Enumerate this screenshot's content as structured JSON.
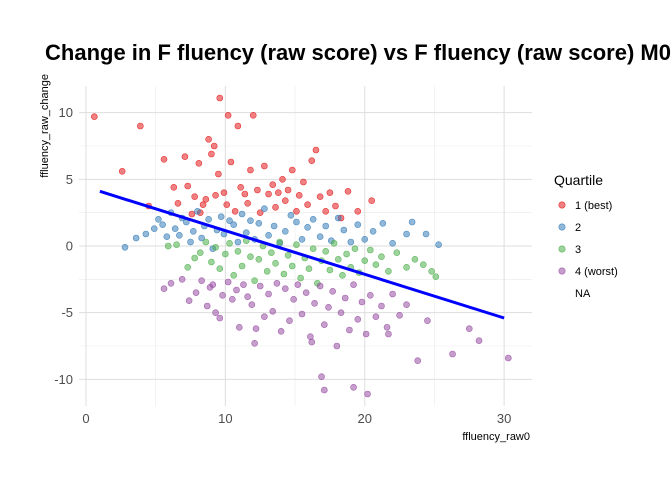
{
  "chart_data": {
    "type": "scatter",
    "title": "Change in F fluency (raw score) vs F fluency (raw score) M0",
    "xlabel": "ffluency_raw0",
    "ylabel": "ffluency_raw_change",
    "xlim": [
      -0.5,
      32
    ],
    "ylim": [
      -12,
      12
    ],
    "x_ticks": [
      0,
      10,
      20,
      30
    ],
    "y_ticks": [
      -10,
      -5,
      0,
      5,
      10
    ],
    "grid": true,
    "legend": {
      "title": "Quartile",
      "placement": "right",
      "entries": [
        {
          "label": "1 (best)",
          "color": "#e41a1c"
        },
        {
          "label": "2",
          "color": "#377eb8"
        },
        {
          "label": "3",
          "color": "#4daf4a"
        },
        {
          "label": "4 (worst)",
          "color": "#984ea3"
        },
        {
          "label": "NA",
          "color": ""
        }
      ]
    },
    "trend_line": {
      "x": [
        1,
        30
      ],
      "y": [
        4.1,
        -5.4
      ],
      "color": "#0000ff"
    },
    "series": [
      {
        "name": "1 (best)",
        "color": "#e41a1c",
        "points": [
          [
            0.6,
            9.7
          ],
          [
            2.6,
            5.6
          ],
          [
            3.9,
            9.0
          ],
          [
            4.5,
            3.0
          ],
          [
            5.6,
            6.5
          ],
          [
            6.3,
            4.4
          ],
          [
            6.6,
            3.2
          ],
          [
            7.1,
            6.7
          ],
          [
            7.3,
            4.5
          ],
          [
            7.6,
            2.4
          ],
          [
            7.8,
            3.7
          ],
          [
            8.1,
            6.2
          ],
          [
            8.2,
            2.5
          ],
          [
            8.4,
            3.1
          ],
          [
            8.6,
            3.5
          ],
          [
            8.8,
            8.0
          ],
          [
            9.0,
            6.9
          ],
          [
            9.2,
            7.5
          ],
          [
            9.3,
            3.8
          ],
          [
            9.5,
            5.4
          ],
          [
            9.6,
            11.1
          ],
          [
            9.9,
            4.0
          ],
          [
            10.1,
            3.1
          ],
          [
            10.2,
            9.8
          ],
          [
            10.4,
            6.3
          ],
          [
            10.7,
            2.6
          ],
          [
            10.9,
            9.0
          ],
          [
            11.1,
            4.4
          ],
          [
            11.4,
            3.9
          ],
          [
            11.6,
            3.2
          ],
          [
            11.8,
            5.7
          ],
          [
            12.0,
            9.8
          ],
          [
            12.3,
            4.2
          ],
          [
            12.5,
            2.5
          ],
          [
            12.8,
            6.0
          ],
          [
            13.1,
            3.9
          ],
          [
            13.4,
            4.6
          ],
          [
            13.6,
            2.9
          ],
          [
            13.8,
            4.0
          ],
          [
            14.1,
            5.0
          ],
          [
            14.3,
            3.4
          ],
          [
            14.5,
            4.2
          ],
          [
            14.8,
            5.7
          ],
          [
            15.1,
            2.6
          ],
          [
            15.3,
            3.8
          ],
          [
            15.6,
            4.8
          ],
          [
            15.9,
            3.1
          ],
          [
            16.2,
            6.4
          ],
          [
            16.5,
            7.2
          ],
          [
            16.8,
            3.7
          ],
          [
            17.2,
            2.6
          ],
          [
            17.5,
            4.0
          ],
          [
            17.9,
            3.0
          ],
          [
            18.3,
            2.1
          ],
          [
            18.8,
            4.1
          ],
          [
            19.5,
            2.6
          ],
          [
            20.5,
            3.4
          ]
        ]
      },
      {
        "name": "2",
        "color": "#377eb8",
        "points": [
          [
            2.8,
            -0.1
          ],
          [
            3.6,
            0.6
          ],
          [
            4.3,
            0.9
          ],
          [
            4.9,
            1.3
          ],
          [
            5.2,
            2.0
          ],
          [
            5.5,
            1.6
          ],
          [
            5.8,
            0.7
          ],
          [
            6.1,
            2.5
          ],
          [
            6.4,
            1.3
          ],
          [
            6.7,
            0.8
          ],
          [
            6.9,
            2.1
          ],
          [
            7.2,
            1.8
          ],
          [
            7.5,
            0.3
          ],
          [
            7.7,
            1.1
          ],
          [
            8.0,
            2.6
          ],
          [
            8.3,
            0.6
          ],
          [
            8.5,
            1.5
          ],
          [
            8.8,
            2.0
          ],
          [
            9.1,
            -0.2
          ],
          [
            9.4,
            1.2
          ],
          [
            9.7,
            2.2
          ],
          [
            9.9,
            0.9
          ],
          [
            10.3,
            1.9
          ],
          [
            10.6,
            1.6
          ],
          [
            10.9,
            0.3
          ],
          [
            11.2,
            2.4
          ],
          [
            11.5,
            1.0
          ],
          [
            11.8,
            1.9
          ],
          [
            12.1,
            0.5
          ],
          [
            12.4,
            1.7
          ],
          [
            12.8,
            2.8
          ],
          [
            13.1,
            0.8
          ],
          [
            13.5,
            1.5
          ],
          [
            13.9,
            0.2
          ],
          [
            14.3,
            1.1
          ],
          [
            14.7,
            2.3
          ],
          [
            15.1,
            1.8
          ],
          [
            15.5,
            0.5
          ],
          [
            15.9,
            1.4
          ],
          [
            16.3,
            2.0
          ],
          [
            16.8,
            0.7
          ],
          [
            17.2,
            1.5
          ],
          [
            17.6,
            0.4
          ],
          [
            18.1,
            2.1
          ],
          [
            18.5,
            1.2
          ],
          [
            19.0,
            0.3
          ],
          [
            19.5,
            1.6
          ],
          [
            20.0,
            0.5
          ],
          [
            20.6,
            1.1
          ],
          [
            21.3,
            1.7
          ],
          [
            22.0,
            0.2
          ],
          [
            23.0,
            0.9
          ],
          [
            23.4,
            1.8
          ],
          [
            24.4,
            0.9
          ],
          [
            25.3,
            0.1
          ]
        ]
      },
      {
        "name": "3",
        "color": "#4daf4a",
        "points": [
          [
            5.9,
            0.0
          ],
          [
            6.5,
            0.1
          ],
          [
            7.3,
            -1.6
          ],
          [
            7.8,
            -0.9
          ],
          [
            8.2,
            -0.5
          ],
          [
            8.6,
            0.3
          ],
          [
            9.0,
            -1.2
          ],
          [
            9.3,
            -0.1
          ],
          [
            9.6,
            -1.7
          ],
          [
            10.0,
            -0.6
          ],
          [
            10.3,
            0.2
          ],
          [
            10.6,
            -2.2
          ],
          [
            10.9,
            -0.4
          ],
          [
            11.2,
            -1.5
          ],
          [
            11.5,
            0.4
          ],
          [
            11.8,
            -0.8
          ],
          [
            12.1,
            -2.6
          ],
          [
            12.4,
            -1.0
          ],
          [
            12.7,
            0.0
          ],
          [
            13.0,
            -1.9
          ],
          [
            13.3,
            -0.5
          ],
          [
            13.6,
            -1.3
          ],
          [
            13.9,
            0.3
          ],
          [
            14.2,
            -2.1
          ],
          [
            14.5,
            -0.7
          ],
          [
            14.8,
            -1.5
          ],
          [
            15.1,
            0.1
          ],
          [
            15.4,
            -2.4
          ],
          [
            15.7,
            -0.9
          ],
          [
            16.0,
            -1.7
          ],
          [
            16.3,
            -0.2
          ],
          [
            16.6,
            -2.8
          ],
          [
            16.9,
            -1.1
          ],
          [
            17.2,
            -0.4
          ],
          [
            17.5,
            -1.8
          ],
          [
            17.8,
            0.2
          ],
          [
            18.1,
            -1.0
          ],
          [
            18.4,
            -2.2
          ],
          [
            18.7,
            -0.6
          ],
          [
            19.0,
            -1.6
          ],
          [
            19.3,
            -0.2
          ],
          [
            19.6,
            -2.0
          ],
          [
            20.0,
            -1.1
          ],
          [
            20.4,
            -0.3
          ],
          [
            20.8,
            -1.4
          ],
          [
            21.2,
            -0.8
          ],
          [
            21.7,
            -1.9
          ],
          [
            22.3,
            -0.5
          ],
          [
            23.0,
            -1.6
          ],
          [
            23.6,
            -1.0
          ],
          [
            24.2,
            -1.4
          ],
          [
            24.8,
            -1.9
          ],
          [
            25.1,
            -2.3
          ]
        ]
      },
      {
        "name": "4 (worst)",
        "color": "#984ea3",
        "points": [
          [
            5.6,
            -3.2
          ],
          [
            6.1,
            -2.8
          ],
          [
            6.9,
            -2.5
          ],
          [
            7.4,
            -4.1
          ],
          [
            7.9,
            -3.5
          ],
          [
            8.3,
            -2.6
          ],
          [
            8.7,
            -4.5
          ],
          [
            8.9,
            -3.1
          ],
          [
            9.1,
            -2.9
          ],
          [
            9.3,
            -5.0
          ],
          [
            9.6,
            -5.4
          ],
          [
            9.8,
            -3.7
          ],
          [
            10.2,
            -2.7
          ],
          [
            10.5,
            -4.0
          ],
          [
            10.8,
            -3.3
          ],
          [
            11.0,
            -6.1
          ],
          [
            11.3,
            -2.9
          ],
          [
            11.6,
            -3.8
          ],
          [
            11.9,
            -4.4
          ],
          [
            12.2,
            -6.2
          ],
          [
            12.5,
            -3.0
          ],
          [
            12.8,
            -5.3
          ],
          [
            13.1,
            -3.6
          ],
          [
            13.4,
            -4.9
          ],
          [
            13.7,
            -2.8
          ],
          [
            14.0,
            -6.4
          ],
          [
            14.3,
            -3.2
          ],
          [
            14.6,
            -5.6
          ],
          [
            14.9,
            -4.0
          ],
          [
            15.2,
            -2.9
          ],
          [
            15.5,
            -5.1
          ],
          [
            15.8,
            -3.5
          ],
          [
            16.1,
            -6.8
          ],
          [
            16.4,
            -4.3
          ],
          [
            16.8,
            -3.0
          ],
          [
            17.1,
            -5.9
          ],
          [
            17.4,
            -4.6
          ],
          [
            17.7,
            -3.4
          ],
          [
            18.0,
            -7.5
          ],
          [
            18.3,
            -5.0
          ],
          [
            18.6,
            -3.9
          ],
          [
            18.9,
            -6.3
          ],
          [
            19.2,
            -2.9
          ],
          [
            19.5,
            -5.5
          ],
          [
            19.8,
            -4.2
          ],
          [
            20.1,
            -6.6
          ],
          [
            20.4,
            -3.7
          ],
          [
            20.8,
            -5.3
          ],
          [
            21.2,
            -4.5
          ],
          [
            21.6,
            -6.1
          ],
          [
            22.0,
            -3.6
          ],
          [
            22.5,
            -5.2
          ],
          [
            23.0,
            -4.4
          ],
          [
            23.8,
            -8.6
          ],
          [
            24.5,
            -5.6
          ],
          [
            26.3,
            -8.1
          ],
          [
            27.5,
            -6.2
          ],
          [
            28.2,
            -7.1
          ],
          [
            30.3,
            -8.4
          ],
          [
            16.9,
            -9.8
          ],
          [
            17.1,
            -10.8
          ],
          [
            19.2,
            -10.6
          ],
          [
            20.2,
            -11.1
          ],
          [
            12.1,
            -7.3
          ],
          [
            16.2,
            -7.2
          ],
          [
            21.7,
            -6.6
          ]
        ]
      }
    ]
  }
}
